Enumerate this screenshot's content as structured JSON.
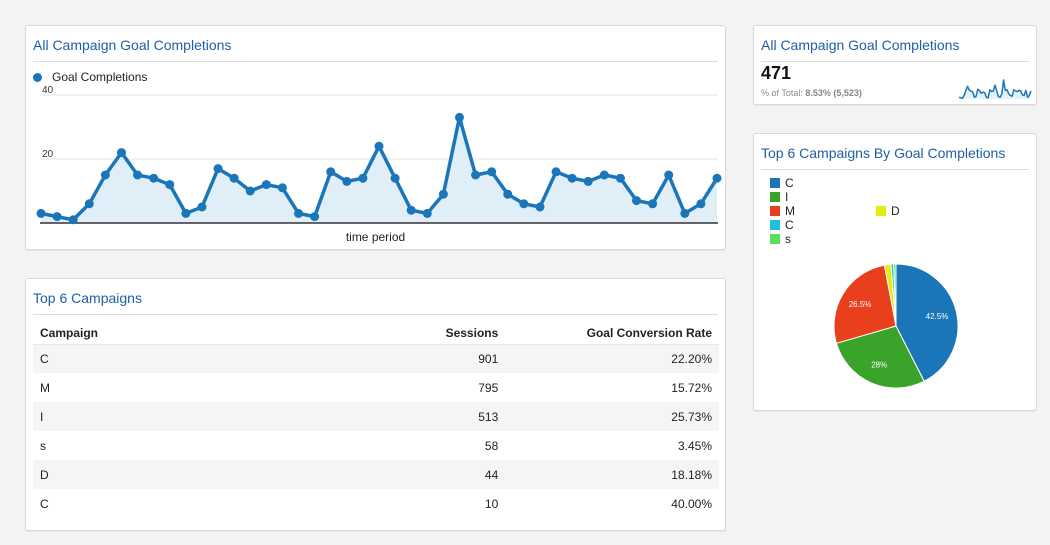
{
  "colors": {
    "accent": "#1a76b9",
    "title": "#1f5fa7",
    "area_fill": "#dfeef7",
    "background": "#f3f3f3"
  },
  "line_panel": {
    "title": "All Campaign Goal Completions",
    "legend_label": "Goal Completions",
    "x_title": "time period",
    "y_ticks": [
      "40",
      "20"
    ]
  },
  "score_panel": {
    "title": "All Campaign Goal Completions",
    "value": "471",
    "sub_label": "% of Total:",
    "sub_value": "8.53% (5,523)"
  },
  "pie_panel": {
    "title": "Top 6 Campaigns By Goal Completions",
    "legend": [
      {
        "label": "C",
        "color": "#1a76b9"
      },
      {
        "label": "I",
        "color": "#3aa329"
      },
      {
        "label": "M",
        "color": "#e8401c"
      },
      {
        "label": "C",
        "color": "#22bfdd"
      },
      {
        "label": "s",
        "color": "#58e05a"
      },
      {
        "label": "D",
        "color": "#e8ec0c"
      }
    ],
    "slice_labels": [
      "42.5%",
      "28%",
      "26.5%"
    ]
  },
  "table_panel": {
    "title": "Top 6 Campaigns",
    "columns": [
      "Campaign",
      "Sessions",
      "Goal Conversion Rate"
    ],
    "rows": [
      {
        "campaign": "C",
        "sessions": "901",
        "rate": "22.20%"
      },
      {
        "campaign": "M",
        "sessions": "795",
        "rate": "15.72%"
      },
      {
        "campaign": "I",
        "sessions": "513",
        "rate": "25.73%"
      },
      {
        "campaign": "s",
        "sessions": "58",
        "rate": "3.45%"
      },
      {
        "campaign": "D",
        "sessions": "44",
        "rate": "18.18%"
      },
      {
        "campaign": "C",
        "sessions": "10",
        "rate": "40.00%"
      }
    ]
  },
  "chart_data": [
    {
      "type": "area",
      "title": "All Campaign Goal Completions",
      "xlabel": "time period",
      "ylabel": "",
      "ylim": [
        0,
        40
      ],
      "y_ticks": [
        20,
        40
      ],
      "grid": true,
      "legend_position": "top-left",
      "series": [
        {
          "name": "Goal Completions",
          "color": "#1a76b9",
          "values": [
            3,
            2,
            1,
            6,
            15,
            22,
            15,
            14,
            12,
            3,
            5,
            17,
            14,
            10,
            12,
            11,
            3,
            2,
            16,
            13,
            14,
            24,
            14,
            4,
            3,
            9,
            33,
            15,
            16,
            9,
            6,
            5,
            16,
            14,
            13,
            15,
            14,
            7,
            6,
            15,
            3,
            6,
            14
          ]
        }
      ]
    },
    {
      "type": "pie",
      "title": "Top 6 Campaigns By Goal Completions",
      "legend_position": "top",
      "categories": [
        "C",
        "I",
        "M",
        "D",
        "C",
        "s"
      ],
      "values": [
        42.5,
        28,
        26.5,
        1.7,
        0.7,
        0.6
      ],
      "colors": [
        "#1a76b9",
        "#3aa329",
        "#e8401c",
        "#e8ec0c",
        "#22bfdd",
        "#58e05a"
      ],
      "slice_labels": [
        "42.5%",
        "28%",
        "26.5%"
      ]
    }
  ]
}
